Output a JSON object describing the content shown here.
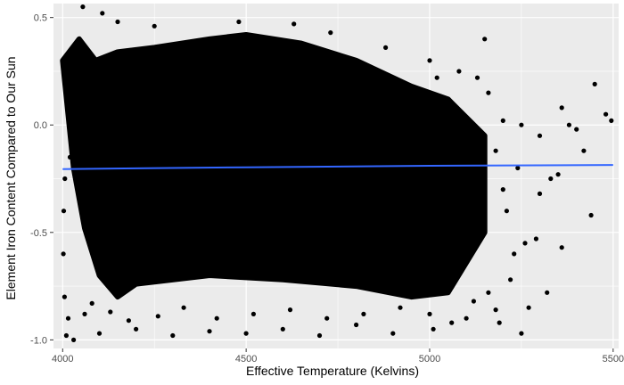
{
  "chart_data": {
    "type": "scatter",
    "title": "",
    "xlabel": "Effective Temperature (Kelvins)",
    "ylabel": "Element Iron Content Compared to Our Sun",
    "xlim": [
      3975,
      5515
    ],
    "ylim": [
      -1.04,
      0.565
    ],
    "x_ticks": [
      4000,
      4500,
      5000,
      5500
    ],
    "y_ticks": [
      -1.0,
      -0.5,
      0.0,
      0.5
    ],
    "x_tick_labels": [
      "4000",
      "4500",
      "5000",
      "5500"
    ],
    "y_tick_labels": [
      "-1.0",
      "-0.5",
      "0.0",
      "0.5"
    ],
    "grid": true,
    "background": "#ebebeb",
    "grid_color": "#ffffff",
    "point_color": "#000000",
    "dense_region": {
      "x": [
        4000,
        4045,
        4090,
        4150,
        4250,
        4400,
        4500,
        4650,
        4800,
        4950,
        5050,
        5150,
        5150,
        5050,
        4950,
        4800,
        4600,
        4400,
        4200,
        4150,
        4100,
        4060,
        4030
      ],
      "y": [
        0.3,
        0.4,
        0.3,
        0.34,
        0.36,
        0.4,
        0.42,
        0.38,
        0.3,
        0.18,
        0.12,
        -0.05,
        -0.5,
        -0.78,
        -0.8,
        -0.75,
        -0.72,
        -0.7,
        -0.74,
        -0.8,
        -0.7,
        -0.48,
        -0.2
      ]
    },
    "series": [
      {
        "type": "scatter",
        "points": [
          [
            4108,
            0.52
          ],
          [
            4055,
            0.55
          ],
          [
            4150,
            0.48
          ],
          [
            4250,
            0.46
          ],
          [
            4480,
            0.48
          ],
          [
            4630,
            0.47
          ],
          [
            4730,
            0.43
          ],
          [
            4880,
            0.36
          ],
          [
            5000,
            0.3
          ],
          [
            5020,
            0.22
          ],
          [
            5080,
            0.25
          ],
          [
            5150,
            0.4
          ],
          [
            5130,
            0.22
          ],
          [
            5160,
            0.15
          ],
          [
            5200,
            0.02
          ],
          [
            5250,
            0.0
          ],
          [
            5300,
            -0.05
          ],
          [
            5360,
            0.08
          ],
          [
            5400,
            -0.02
          ],
          [
            5450,
            0.19
          ],
          [
            5480,
            0.05
          ],
          [
            5495,
            0.02
          ],
          [
            5380,
            0.0
          ],
          [
            5420,
            -0.12
          ],
          [
            5350,
            -0.23
          ],
          [
            5330,
            -0.25
          ],
          [
            5300,
            -0.32
          ],
          [
            5440,
            -0.42
          ],
          [
            5360,
            -0.57
          ],
          [
            5290,
            -0.53
          ],
          [
            5260,
            -0.55
          ],
          [
            5230,
            -0.6
          ],
          [
            5320,
            -0.78
          ],
          [
            5270,
            -0.85
          ],
          [
            5250,
            -0.97
          ],
          [
            5190,
            -0.92
          ],
          [
            5180,
            -0.86
          ],
          [
            5220,
            -0.72
          ],
          [
            5210,
            -0.4
          ],
          [
            5200,
            -0.3
          ],
          [
            5240,
            -0.2
          ],
          [
            5180,
            -0.12
          ],
          [
            5100,
            -0.9
          ],
          [
            5010,
            -0.95
          ],
          [
            4900,
            -0.97
          ],
          [
            4800,
            -0.93
          ],
          [
            4700,
            -0.98
          ],
          [
            4600,
            -0.95
          ],
          [
            4500,
            -0.97
          ],
          [
            4400,
            -0.96
          ],
          [
            4300,
            -0.98
          ],
          [
            4200,
            -0.95
          ],
          [
            4100,
            -0.97
          ],
          [
            4030,
            -1.0
          ],
          [
            4010,
            -0.98
          ],
          [
            4005,
            -0.8
          ],
          [
            4002,
            -0.6
          ],
          [
            4003,
            -0.4
          ],
          [
            4006,
            -0.25
          ],
          [
            4020,
            -0.15
          ],
          [
            4015,
            -0.9
          ],
          [
            4060,
            -0.88
          ],
          [
            4080,
            -0.83
          ],
          [
            4130,
            -0.87
          ],
          [
            4180,
            -0.91
          ],
          [
            4260,
            -0.89
          ],
          [
            4330,
            -0.85
          ],
          [
            4420,
            -0.9
          ],
          [
            4520,
            -0.88
          ],
          [
            4620,
            -0.86
          ],
          [
            4720,
            -0.9
          ],
          [
            4820,
            -0.88
          ],
          [
            4920,
            -0.85
          ],
          [
            5000,
            -0.88
          ],
          [
            5060,
            -0.92
          ],
          [
            5120,
            -0.82
          ],
          [
            5160,
            -0.78
          ],
          [
            5000,
            0.05
          ]
        ]
      },
      {
        "type": "line",
        "name": "",
        "color": "#3366ff",
        "points": [
          [
            4000,
            -0.205
          ],
          [
            4500,
            -0.197
          ],
          [
            5000,
            -0.19
          ],
          [
            5500,
            -0.186
          ]
        ]
      }
    ]
  }
}
